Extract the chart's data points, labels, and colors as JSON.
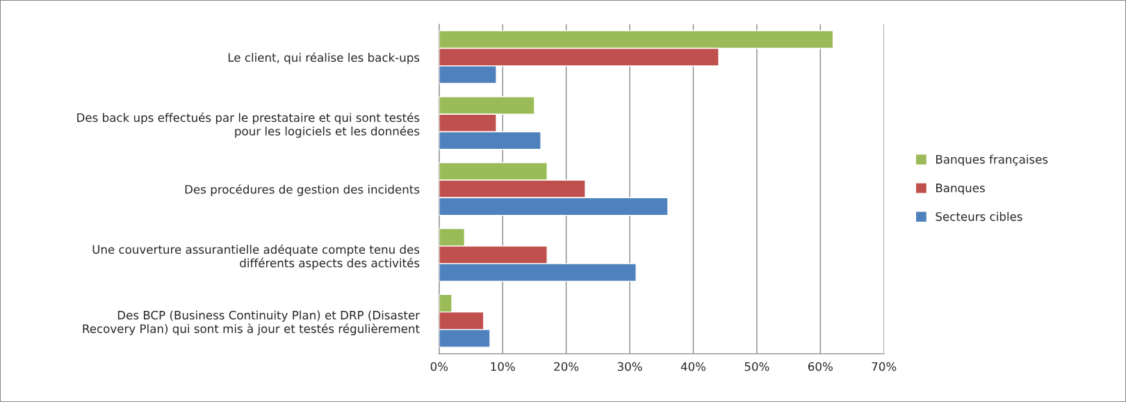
{
  "chart_data": {
    "type": "bar",
    "orientation": "horizontal",
    "categories": [
      "Le client, qui réalise les back-ups",
      "Des back ups effectués par le prestataire et qui sont testés\npour les logiciels et les données",
      "Des procédures de gestion des incidents",
      "Une couverture assurantielle adéquate compte tenu des\ndifférents aspects des activités",
      "Des BCP (Business Continuity Plan) et DRP (Disaster\nRecovery Plan) qui sont mis à jour et testés régulièrement"
    ],
    "series": [
      {
        "name": "Banques françaises",
        "color": "#9bbb59",
        "values": [
          62,
          15,
          17,
          4,
          2
        ]
      },
      {
        "name": "Banques",
        "color": "#c0504d",
        "values": [
          44,
          9,
          23,
          17,
          7
        ]
      },
      {
        "name": "Secteurs cibles",
        "color": "#4f81bd",
        "values": [
          9,
          16,
          36,
          31,
          8
        ]
      }
    ],
    "xlim": [
      0,
      70
    ],
    "xticks": [
      {
        "value": 0,
        "label": "0%"
      },
      {
        "value": 10,
        "label": "10%"
      },
      {
        "value": 20,
        "label": "20%"
      },
      {
        "value": 30,
        "label": "30%"
      },
      {
        "value": 40,
        "label": "40%"
      },
      {
        "value": 50,
        "label": "50%"
      },
      {
        "value": 60,
        "label": "60%"
      },
      {
        "value": 70,
        "label": "70%"
      }
    ],
    "grid": "x",
    "legend": "right"
  }
}
